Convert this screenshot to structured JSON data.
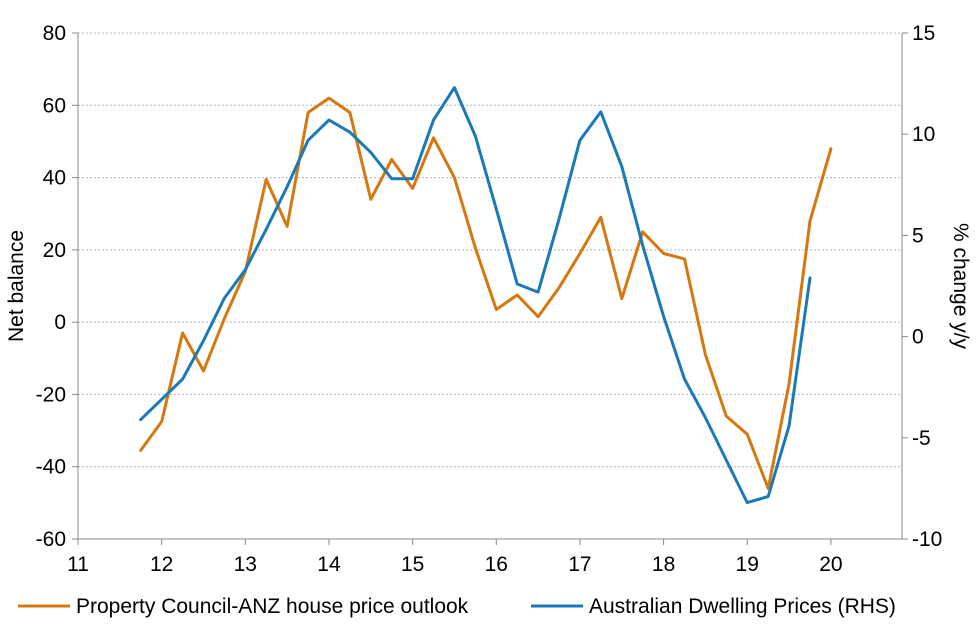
{
  "chart_data": {
    "type": "line",
    "x_axis": {
      "ticks": [
        "11",
        "12",
        "13",
        "14",
        "15",
        "16",
        "17",
        "18",
        "19",
        "20"
      ],
      "range": [
        11,
        20.85
      ]
    },
    "y_left": {
      "label": "Net balance",
      "ticks": [
        "80",
        "60",
        "40",
        "20",
        "0",
        "-20",
        "-40",
        "-60"
      ],
      "range": [
        -60,
        80
      ]
    },
    "y_right": {
      "label": "% change y/y",
      "ticks": [
        "15",
        "10",
        "5",
        "0",
        "-5",
        "-10"
      ],
      "range": [
        -10,
        15
      ]
    },
    "grid": "horizontal dashed",
    "legend_position": "bottom",
    "series": [
      {
        "name": "Property Council-ANZ house price outlook",
        "axis": "left",
        "color": "#d4780f",
        "x": [
          11.75,
          12.0,
          12.25,
          12.5,
          12.75,
          13.0,
          13.25,
          13.5,
          13.75,
          14.0,
          14.25,
          14.5,
          14.75,
          15.0,
          15.25,
          15.5,
          15.75,
          16.0,
          16.25,
          16.5,
          16.75,
          17.0,
          17.25,
          17.5,
          17.75,
          18.0,
          18.25,
          18.5,
          18.75,
          19.0,
          19.25,
          19.5,
          19.75,
          20.0
        ],
        "values": [
          -35.5,
          -27.5,
          -3,
          -13.5,
          1,
          14,
          39.5,
          26.5,
          58,
          62,
          58,
          34,
          45,
          37,
          51,
          40,
          20.5,
          3.5,
          7.5,
          1.5,
          9.5,
          19,
          29,
          6.5,
          25,
          19,
          17.5,
          -9,
          -26,
          -31,
          -46,
          -17,
          28,
          48
        ]
      },
      {
        "name": "Australian Dwelling Prices (RHS)",
        "axis": "right",
        "color": "#1a7ab8",
        "x": [
          11.75,
          12.0,
          12.25,
          12.5,
          12.75,
          13.0,
          13.25,
          13.5,
          13.75,
          14.0,
          14.25,
          14.5,
          14.75,
          15.0,
          15.25,
          15.5,
          15.75,
          16.0,
          16.25,
          16.5,
          16.75,
          17.0,
          17.25,
          17.5,
          17.75,
          18.0,
          18.25,
          18.5,
          18.75,
          19.0,
          19.25,
          19.5,
          19.75
        ],
        "values": [
          -4.1,
          -3.1,
          -2.1,
          -0.2,
          1.9,
          3.3,
          5.3,
          7.4,
          9.7,
          10.7,
          10.1,
          9.1,
          7.8,
          7.8,
          10.7,
          12.3,
          9.9,
          6.3,
          2.6,
          2.2,
          5.8,
          9.7,
          11.1,
          8.4,
          4.5,
          1.0,
          -2.1,
          -4.0,
          -6.1,
          -8.2,
          -7.9,
          -4.4,
          2.9
        ]
      }
    ]
  }
}
